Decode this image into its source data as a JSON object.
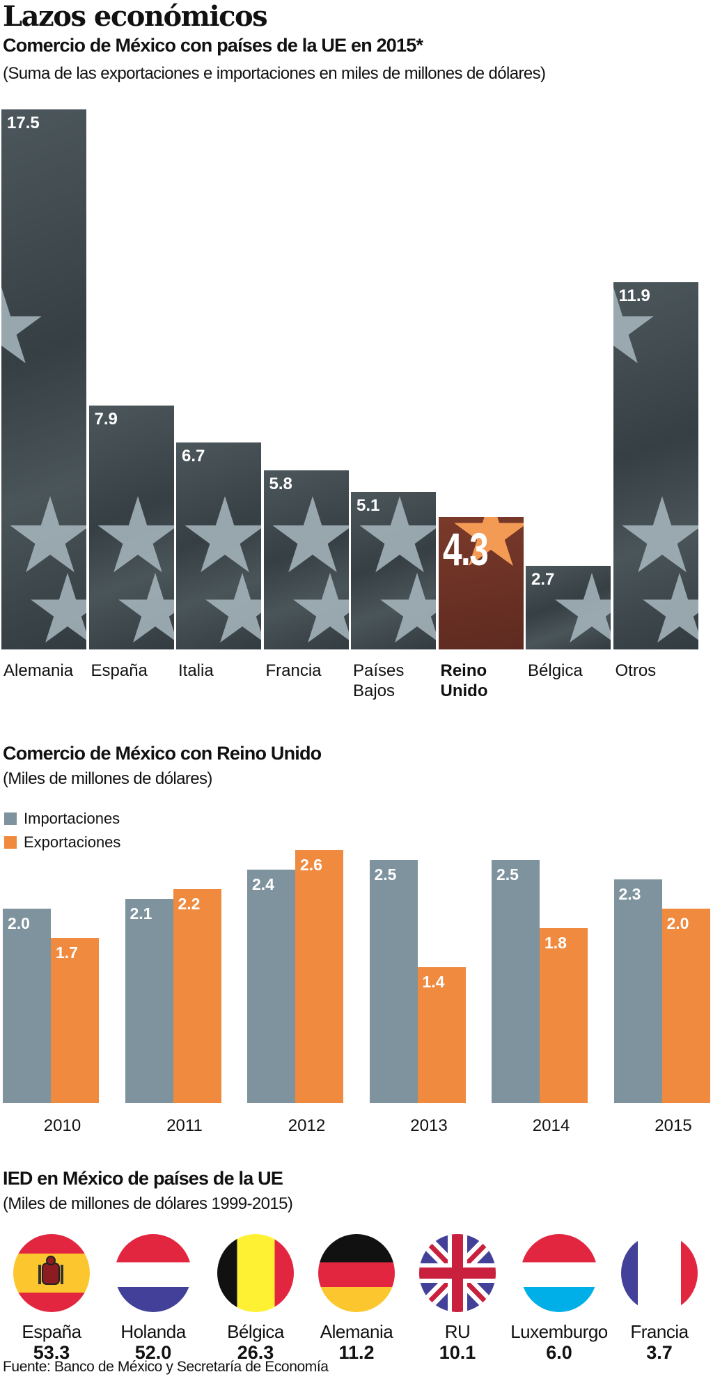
{
  "title": "Lazos económicos",
  "chart_data": [
    {
      "type": "bar",
      "title": "Comercio de México con países de la UE en 2015*",
      "subtitle": "(Suma de las exportaciones e importaciones en miles de millones de dólares)",
      "categories": [
        "Alemania",
        "España",
        "Italia",
        "Francia",
        "Países Bajos",
        "Reino Unido",
        "Bélgica",
        "Otros"
      ],
      "category_lines": [
        [
          "Alemania"
        ],
        [
          "España"
        ],
        [
          "Italia"
        ],
        [
          "Francia"
        ],
        [
          "Países",
          "Bajos"
        ],
        [
          "Reino",
          "Unido"
        ],
        [
          "Bélgica"
        ],
        [
          "Otros"
        ]
      ],
      "values": [
        17.5,
        7.9,
        6.7,
        5.8,
        5.1,
        4.3,
        2.7,
        11.9
      ],
      "value_labels": [
        "17.5",
        "7.9",
        "6.7",
        "5.8",
        "5.1",
        "4.3",
        "2.7",
        "11.9"
      ],
      "highlight": "Reino Unido",
      "ylim": [
        0,
        17.5
      ],
      "colors": {
        "bar": "#3d474c",
        "highlight": "#6e3326"
      }
    },
    {
      "type": "bar",
      "title": "Comercio de México con Reino Unido",
      "subtitle": "(Miles de millones de dólares)",
      "categories": [
        "2010",
        "2011",
        "2012",
        "2013",
        "2014",
        "2015"
      ],
      "series": [
        {
          "name": "Importaciones",
          "color": "#7e939e",
          "values": [
            2.0,
            2.1,
            2.4,
            2.5,
            2.5,
            2.3
          ],
          "labels": [
            "2.0",
            "2.1",
            "2.4",
            "2.5",
            "2.5",
            "2.3"
          ]
        },
        {
          "name": "Exportaciones",
          "color": "#ef8a3f",
          "values": [
            1.7,
            2.2,
            2.6,
            1.4,
            1.8,
            2.0
          ],
          "labels": [
            "1.7",
            "2.2",
            "2.6",
            "1.4",
            "1.8",
            "2.0"
          ]
        }
      ],
      "legend": "top-left",
      "ylim": [
        0,
        2.6
      ]
    },
    {
      "type": "table",
      "title": "IED en México de países de la UE",
      "subtitle": "(Miles de millones de dólares 1999-2015)",
      "rows": [
        {
          "country": "España",
          "value": "53.3",
          "flag": "spain-flag-icon"
        },
        {
          "country": "Holanda",
          "value": "52.0",
          "flag": "netherlands-flag-icon"
        },
        {
          "country": "Bélgica",
          "value": "26.3",
          "flag": "belgium-flag-icon"
        },
        {
          "country": "Alemania",
          "value": "11.2",
          "flag": "germany-flag-icon"
        },
        {
          "country": "RU",
          "value": "10.1",
          "flag": "uk-flag-icon"
        },
        {
          "country": "Luxemburgo",
          "value": "6.0",
          "flag": "luxembourg-flag-icon"
        },
        {
          "country": "Francia",
          "value": "3.7",
          "flag": "france-flag-icon"
        }
      ]
    }
  ],
  "source": "Fuente: Banco de México y Secretaría de Economía"
}
